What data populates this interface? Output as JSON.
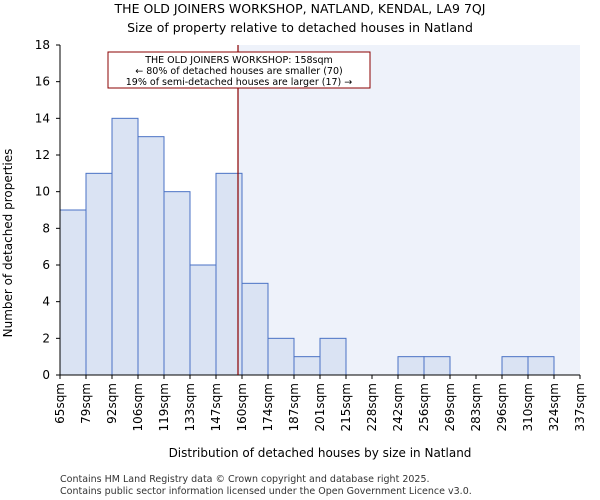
{
  "chart_data": {
    "type": "bar",
    "title_lines": [
      "THE OLD JOINERS WORKSHOP, NATLAND, KENDAL, LA9 7QJ",
      "Size of property relative to detached houses in Natland"
    ],
    "xlabel": "Distribution of detached houses by size in Natland",
    "ylabel": "Number of detached properties",
    "bin_edges": [
      65,
      79,
      92,
      106,
      119,
      133,
      147,
      160,
      174,
      187,
      201,
      215,
      228,
      242,
      256,
      269,
      283,
      296,
      310,
      324,
      337
    ],
    "tick_labels": [
      "65sqm",
      "79sqm",
      "92sqm",
      "106sqm",
      "119sqm",
      "133sqm",
      "147sqm",
      "160sqm",
      "174sqm",
      "187sqm",
      "201sqm",
      "215sqm",
      "228sqm",
      "242sqm",
      "256sqm",
      "269sqm",
      "283sqm",
      "296sqm",
      "310sqm",
      "324sqm",
      "337sqm"
    ],
    "values": [
      9,
      11,
      14,
      13,
      10,
      6,
      11,
      5,
      2,
      1,
      2,
      0,
      0,
      1,
      1,
      0,
      0,
      1,
      1,
      0
    ],
    "ylim": [
      0,
      18
    ],
    "yticks": [
      0,
      2,
      4,
      6,
      8,
      10,
      12,
      14,
      16,
      18
    ],
    "grid": false,
    "property_size_sqm": 158,
    "colors": {
      "bar_fill": "#dae3f3",
      "bar_edge": "#4a72c4",
      "highlight_region": "#eef2fa",
      "marker_line": "#8b0000",
      "annotation_border": "#8b0000"
    },
    "annotation": {
      "lines": [
        "THE OLD JOINERS WORKSHOP: 158sqm",
        "← 80% of detached houses are smaller (70)",
        "19% of semi-detached houses are larger (17) →"
      ]
    }
  },
  "footer": {
    "line1": "Contains HM Land Registry data © Crown copyright and database right 2025.",
    "line2": "Contains public sector information licensed under the Open Government Licence v3.0."
  }
}
